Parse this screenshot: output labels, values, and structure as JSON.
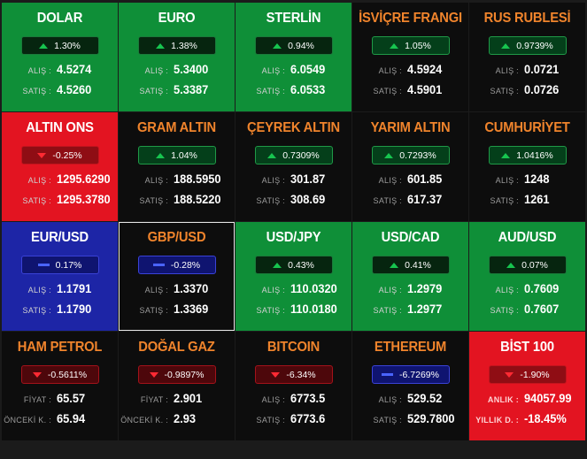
{
  "tiles": [
    {
      "title": "DOLAR",
      "color": "green",
      "title_color": "white",
      "trend": "up",
      "pill_style": "p-green-dark",
      "change": "1.30%",
      "l1": "ALIŞ :",
      "v1": "4.5274",
      "l2": "SATIŞ :",
      "v2": "4.5260"
    },
    {
      "title": "EURO",
      "color": "green",
      "title_color": "white",
      "trend": "up",
      "pill_style": "p-green-dark",
      "change": "1.38%",
      "l1": "ALIŞ :",
      "v1": "5.3400",
      "l2": "SATIŞ :",
      "v2": "5.3387"
    },
    {
      "title": "STERLİN",
      "color": "green",
      "title_color": "white",
      "trend": "up",
      "pill_style": "p-green-dark",
      "change": "0.94%",
      "l1": "ALIŞ :",
      "v1": "6.0549",
      "l2": "SATIŞ :",
      "v2": "6.0533"
    },
    {
      "title": "İSVİÇRE FRANGI",
      "color": "black",
      "title_color": "orange",
      "trend": "up",
      "pill_style": "p-green",
      "change": "1.05%",
      "l1": "ALIŞ :",
      "v1": "4.5924",
      "l2": "SATIŞ :",
      "v2": "4.5901"
    },
    {
      "title": "RUS RUBLESİ",
      "color": "black",
      "title_color": "orange",
      "trend": "up",
      "pill_style": "p-green",
      "change": "0.9739%",
      "l1": "ALIŞ :",
      "v1": "0.0721",
      "l2": "SATIŞ :",
      "v2": "0.0726"
    },
    {
      "title": "ALTIN ONS",
      "color": "red",
      "title_color": "white",
      "trend": "down",
      "pill_style": "p-red",
      "change": "-0.25%",
      "l1": "ALIŞ :",
      "v1": "1295.6290",
      "l2": "SATIŞ :",
      "v2": "1295.3780"
    },
    {
      "title": "GRAM ALTIN",
      "color": "black",
      "title_color": "orange",
      "trend": "up",
      "pill_style": "p-green",
      "change": "1.04%",
      "l1": "ALIŞ :",
      "v1": "188.5950",
      "l2": "SATIŞ :",
      "v2": "188.5220"
    },
    {
      "title": "ÇEYREK ALTIN",
      "color": "black",
      "title_color": "orange",
      "trend": "up",
      "pill_style": "p-green",
      "change": "0.7309%",
      "l1": "ALIŞ :",
      "v1": "301.87",
      "l2": "SATIŞ :",
      "v2": "308.69"
    },
    {
      "title": "YARIM ALTIN",
      "color": "black",
      "title_color": "orange",
      "trend": "up",
      "pill_style": "p-green",
      "change": "0.7293%",
      "l1": "ALIŞ :",
      "v1": "601.85",
      "l2": "SATIŞ :",
      "v2": "617.37"
    },
    {
      "title": "CUMHURİYET",
      "color": "black",
      "title_color": "orange",
      "trend": "up",
      "pill_style": "p-green",
      "change": "1.0416%",
      "l1": "ALIŞ :",
      "v1": "1248",
      "l2": "SATIŞ :",
      "v2": "1261"
    },
    {
      "title": "EUR/USD",
      "color": "blue",
      "title_color": "white",
      "trend": "flat",
      "pill_style": "p-blue",
      "change": "0.17%",
      "l1": "ALIŞ :",
      "v1": "1.1791",
      "l2": "SATIŞ :",
      "v2": "1.1790"
    },
    {
      "title": "GBP/USD",
      "color": "black",
      "title_color": "orange",
      "trend": "flat",
      "pill_style": "p-blue",
      "change": "-0.28%",
      "l1": "ALIŞ :",
      "v1": "1.3370",
      "l2": "SATIŞ :",
      "v2": "1.3369",
      "outlined": true
    },
    {
      "title": "USD/JPY",
      "color": "green",
      "title_color": "white",
      "trend": "up",
      "pill_style": "p-green-dark",
      "change": "0.43%",
      "l1": "ALIŞ :",
      "v1": "110.0320",
      "l2": "SATIŞ :",
      "v2": "110.0180"
    },
    {
      "title": "USD/CAD",
      "color": "green",
      "title_color": "white",
      "trend": "up",
      "pill_style": "p-green-dark",
      "change": "0.41%",
      "l1": "ALIŞ :",
      "v1": "1.2979",
      "l2": "SATIŞ :",
      "v2": "1.2977"
    },
    {
      "title": "AUD/USD",
      "color": "green",
      "title_color": "white",
      "trend": "up",
      "pill_style": "p-green-dark",
      "change": "0.07%",
      "l1": "ALIŞ :",
      "v1": "0.7609",
      "l2": "SATIŞ :",
      "v2": "0.7607"
    },
    {
      "title": "HAM PETROL",
      "color": "black",
      "title_color": "orange",
      "trend": "down",
      "pill_style": "p-red-dark",
      "change": "-0.5611%",
      "l1": "FİYAT :",
      "v1": "65.57",
      "l2": "ÖNCEKİ K. :",
      "v2": "65.94"
    },
    {
      "title": "DOĞAL GAZ",
      "color": "black",
      "title_color": "orange",
      "trend": "down",
      "pill_style": "p-red-dark",
      "change": "-0.9897%",
      "l1": "FİYAT :",
      "v1": "2.901",
      "l2": "ÖNCEKİ K. :",
      "v2": "2.93"
    },
    {
      "title": "BITCOIN",
      "color": "black",
      "title_color": "orange",
      "trend": "down",
      "pill_style": "p-red-dark",
      "change": "-6.34%",
      "l1": "ALIŞ :",
      "v1": "6773.5",
      "l2": "SATIŞ :",
      "v2": "6773.6"
    },
    {
      "title": "ETHEREUM",
      "color": "black",
      "title_color": "orange",
      "trend": "flat",
      "pill_style": "p-blue",
      "change": "-6.7269%",
      "l1": "ALIŞ :",
      "v1": "529.52",
      "l2": "SATIŞ :",
      "v2": "529.7800"
    },
    {
      "title": "BİST 100",
      "color": "red",
      "title_color": "white",
      "trend": "down",
      "pill_style": "p-red",
      "change": "-1.90%",
      "l1": "ANLIK :",
      "v1": "94057.99",
      "l2": "YILLIK D. :",
      "v2": "-18.45%"
    }
  ]
}
